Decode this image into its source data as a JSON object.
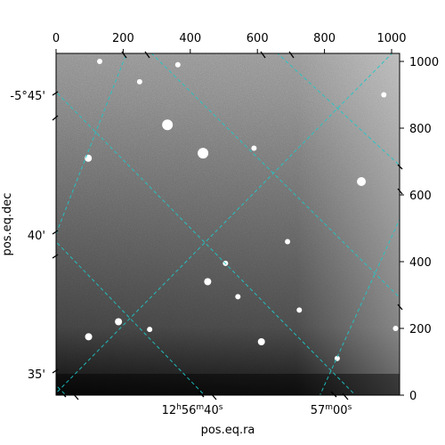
{
  "chart_data": {
    "type": "heatmap",
    "description_kind": "astronomical image with WCS overlay",
    "image_colormap": "gray",
    "pixel_axes": {
      "x": {
        "range": [
          0,
          1024
        ],
        "ticks": [
          "0",
          "200",
          "400",
          "600",
          "800",
          "1000"
        ],
        "position": "top"
      },
      "y": {
        "range": [
          0,
          1024
        ],
        "ticks": [
          "0",
          "200",
          "400",
          "600",
          "800",
          "1000"
        ],
        "position": "right"
      }
    },
    "world_axes": {
      "dec": {
        "label": "pos.eq.dec",
        "ticks": [
          "-5°45'",
          "40'",
          "35'"
        ],
        "position": "left"
      },
      "ra": {
        "label": "pos.eq.ra",
        "ticks": [
          {
            "h": "12",
            "m": "56",
            "s": "40",
            "text": "12h56m40s"
          },
          {
            "m": "57",
            "s": "00",
            "text": "57m00s"
          }
        ],
        "position": "bottom"
      }
    },
    "grid": {
      "on": true,
      "color": "#1ec8c8",
      "style": "dashed",
      "orientation": "rotated ~40°"
    },
    "stars": [
      {
        "x": 96,
        "y": 710,
        "r": 4
      },
      {
        "x": 97,
        "y": 175,
        "r": 4
      },
      {
        "x": 186,
        "y": 220,
        "r": 4
      },
      {
        "x": 249,
        "y": 939,
        "r": 3
      },
      {
        "x": 279,
        "y": 197,
        "r": 3
      },
      {
        "x": 332,
        "y": 810,
        "r": 6
      },
      {
        "x": 438,
        "y": 725,
        "r": 6
      },
      {
        "x": 452,
        "y": 340,
        "r": 4
      },
      {
        "x": 505,
        "y": 395,
        "r": 3
      },
      {
        "x": 542,
        "y": 295,
        "r": 3
      },
      {
        "x": 612,
        "y": 160,
        "r": 4
      },
      {
        "x": 725,
        "y": 255,
        "r": 3
      },
      {
        "x": 838,
        "y": 110,
        "r": 3
      },
      {
        "x": 910,
        "y": 640,
        "r": 5
      },
      {
        "x": 977,
        "y": 900,
        "r": 3
      },
      {
        "x": 1012,
        "y": 200,
        "r": 3
      },
      {
        "x": 130,
        "y": 1000,
        "r": 3
      },
      {
        "x": 363,
        "y": 990,
        "r": 3
      },
      {
        "x": 590,
        "y": 740,
        "r": 3
      },
      {
        "x": 690,
        "y": 460,
        "r": 3
      }
    ]
  }
}
